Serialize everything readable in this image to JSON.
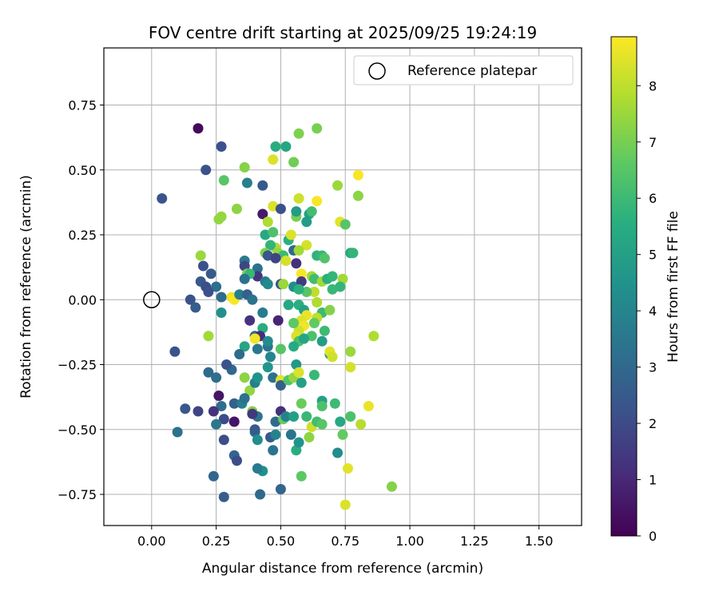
{
  "chart_data": {
    "type": "scatter",
    "title": "FOV centre drift starting at 2025/09/25 19:24:19",
    "xlabel": "Angular distance from reference (arcmin)",
    "ylabel": "Rotation from reference (arcmin)",
    "xlim": [
      -0.185,
      1.665
    ],
    "ylim": [
      -0.87,
      0.97
    ],
    "xticks": [
      0.0,
      0.25,
      0.5,
      0.75,
      1.0,
      1.25,
      1.5
    ],
    "xtick_labels": [
      "0.00",
      "0.25",
      "0.50",
      "0.75",
      "1.00",
      "1.25",
      "1.50"
    ],
    "yticks": [
      -0.75,
      -0.5,
      -0.25,
      0.0,
      0.25,
      0.5,
      0.75
    ],
    "ytick_labels": [
      "−0.75",
      "−0.50",
      "−0.25",
      "0.00",
      "0.25",
      "0.50",
      "0.75"
    ],
    "grid": true,
    "legend": {
      "position": "top-right",
      "entries": [
        {
          "label": "Reference platepar",
          "marker": "open-circle"
        }
      ]
    },
    "reference_point": {
      "x": 0.0,
      "y": 0.0
    },
    "colorbar": {
      "label": "Hours from first FF file",
      "colormap": "viridis",
      "range": [
        0,
        8.87
      ],
      "ticks": [
        0,
        1,
        2,
        3,
        4,
        5,
        6,
        7,
        8
      ],
      "tick_labels": [
        "0",
        "1",
        "2",
        "3",
        "4",
        "5",
        "6",
        "7",
        "8"
      ]
    },
    "points": [
      {
        "x": 0.18,
        "y": 0.66,
        "c": 0.2
      },
      {
        "x": 0.27,
        "y": 0.59,
        "c": 2.2
      },
      {
        "x": 0.21,
        "y": 0.5,
        "c": 2.2
      },
      {
        "x": 0.04,
        "y": 0.39,
        "c": 2.3
      },
      {
        "x": 0.43,
        "y": 0.44,
        "c": 2.5
      },
      {
        "x": 0.37,
        "y": 0.45,
        "c": 3.8
      },
      {
        "x": 0.28,
        "y": 0.46,
        "c": 6.5
      },
      {
        "x": 0.36,
        "y": 0.51,
        "c": 7.2
      },
      {
        "x": 0.48,
        "y": 0.59,
        "c": 5.5
      },
      {
        "x": 0.52,
        "y": 0.59,
        "c": 5.2
      },
      {
        "x": 0.47,
        "y": 0.54,
        "c": 8.4
      },
      {
        "x": 0.55,
        "y": 0.53,
        "c": 6.9
      },
      {
        "x": 0.57,
        "y": 0.64,
        "c": 7.1
      },
      {
        "x": 0.64,
        "y": 0.66,
        "c": 7.0
      },
      {
        "x": 0.72,
        "y": 0.44,
        "c": 7.5
      },
      {
        "x": 0.8,
        "y": 0.48,
        "c": 8.8
      },
      {
        "x": 0.8,
        "y": 0.4,
        "c": 7.3
      },
      {
        "x": 0.57,
        "y": 0.39,
        "c": 8.2
      },
      {
        "x": 0.64,
        "y": 0.38,
        "c": 8.8
      },
      {
        "x": 0.73,
        "y": 0.3,
        "c": 8.5
      },
      {
        "x": 0.75,
        "y": 0.29,
        "c": 6.5
      },
      {
        "x": 0.33,
        "y": 0.35,
        "c": 7.3
      },
      {
        "x": 0.26,
        "y": 0.31,
        "c": 7.4
      },
      {
        "x": 0.27,
        "y": 0.32,
        "c": 7.4
      },
      {
        "x": 0.43,
        "y": 0.33,
        "c": 0.6
      },
      {
        "x": 0.47,
        "y": 0.36,
        "c": 8.4
      },
      {
        "x": 0.5,
        "y": 0.35,
        "c": 2.2
      },
      {
        "x": 0.45,
        "y": 0.3,
        "c": 7.8
      },
      {
        "x": 0.44,
        "y": 0.25,
        "c": 5.3
      },
      {
        "x": 0.47,
        "y": 0.26,
        "c": 6.3
      },
      {
        "x": 0.53,
        "y": 0.23,
        "c": 5.6
      },
      {
        "x": 0.54,
        "y": 0.25,
        "c": 8.4
      },
      {
        "x": 0.56,
        "y": 0.32,
        "c": 7.0
      },
      {
        "x": 0.56,
        "y": 0.34,
        "c": 4.8
      },
      {
        "x": 0.6,
        "y": 0.3,
        "c": 4.8
      },
      {
        "x": 0.61,
        "y": 0.33,
        "c": 4.9
      },
      {
        "x": 0.62,
        "y": 0.34,
        "c": 6.1
      },
      {
        "x": 0.6,
        "y": 0.21,
        "c": 8.3
      },
      {
        "x": 0.55,
        "y": 0.19,
        "c": 3.0
      },
      {
        "x": 0.48,
        "y": 0.2,
        "c": 7.8
      },
      {
        "x": 0.46,
        "y": 0.21,
        "c": 5.8
      },
      {
        "x": 0.44,
        "y": 0.18,
        "c": 7.1
      },
      {
        "x": 0.45,
        "y": 0.17,
        "c": 2.4
      },
      {
        "x": 0.49,
        "y": 0.18,
        "c": 7.4
      },
      {
        "x": 0.51,
        "y": 0.17,
        "c": 6.0
      },
      {
        "x": 0.56,
        "y": 0.14,
        "c": 1.2
      },
      {
        "x": 0.52,
        "y": 0.15,
        "c": 8.3
      },
      {
        "x": 0.48,
        "y": 0.16,
        "c": 1.8
      },
      {
        "x": 0.57,
        "y": 0.19,
        "c": 7.6
      },
      {
        "x": 0.64,
        "y": 0.17,
        "c": 5.7
      },
      {
        "x": 0.66,
        "y": 0.17,
        "c": 5.9
      },
      {
        "x": 0.67,
        "y": 0.16,
        "c": 6.4
      },
      {
        "x": 0.77,
        "y": 0.18,
        "c": 5.3
      },
      {
        "x": 0.78,
        "y": 0.18,
        "c": 5.8
      },
      {
        "x": 0.19,
        "y": 0.17,
        "c": 7.5
      },
      {
        "x": 0.2,
        "y": 0.13,
        "c": 2.2
      },
      {
        "x": 0.23,
        "y": 0.1,
        "c": 2.5
      },
      {
        "x": 0.36,
        "y": 0.15,
        "c": 3.6
      },
      {
        "x": 0.36,
        "y": 0.13,
        "c": 1.9
      },
      {
        "x": 0.4,
        "y": 0.1,
        "c": 2.9
      },
      {
        "x": 0.41,
        "y": 0.12,
        "c": 3.3
      },
      {
        "x": 0.41,
        "y": 0.09,
        "c": 1.4
      },
      {
        "x": 0.37,
        "y": 0.1,
        "c": 7.2
      },
      {
        "x": 0.38,
        "y": 0.1,
        "c": 5.9
      },
      {
        "x": 0.36,
        "y": 0.08,
        "c": 3.3
      },
      {
        "x": 0.44,
        "y": 0.07,
        "c": 3.6
      },
      {
        "x": 0.45,
        "y": 0.06,
        "c": 4.2
      },
      {
        "x": 0.5,
        "y": 0.06,
        "c": 2.4
      },
      {
        "x": 0.51,
        "y": 0.06,
        "c": 7.5
      },
      {
        "x": 0.55,
        "y": 0.05,
        "c": 4.3
      },
      {
        "x": 0.58,
        "y": 0.1,
        "c": 8.8
      },
      {
        "x": 0.58,
        "y": 0.07,
        "c": 1.5
      },
      {
        "x": 0.62,
        "y": 0.09,
        "c": 7.6
      },
      {
        "x": 0.63,
        "y": 0.08,
        "c": 6.1
      },
      {
        "x": 0.66,
        "y": 0.07,
        "c": 7.6
      },
      {
        "x": 0.68,
        "y": 0.08,
        "c": 5.6
      },
      {
        "x": 0.7,
        "y": 0.09,
        "c": 5.8
      },
      {
        "x": 0.74,
        "y": 0.08,
        "c": 7.6
      },
      {
        "x": 0.73,
        "y": 0.05,
        "c": 5.8
      },
      {
        "x": 0.7,
        "y": 0.04,
        "c": 5.9
      },
      {
        "x": 0.63,
        "y": 0.03,
        "c": 8.0
      },
      {
        "x": 0.6,
        "y": 0.03,
        "c": 6.5
      },
      {
        "x": 0.57,
        "y": 0.04,
        "c": 5.6
      },
      {
        "x": 0.19,
        "y": 0.07,
        "c": 2.5
      },
      {
        "x": 0.21,
        "y": 0.05,
        "c": 2.1
      },
      {
        "x": 0.25,
        "y": 0.05,
        "c": 3.2
      },
      {
        "x": 0.22,
        "y": 0.03,
        "c": 2.2
      },
      {
        "x": 0.15,
        "y": 0.0,
        "c": 2.3
      },
      {
        "x": 0.17,
        "y": -0.03,
        "c": 2.6
      },
      {
        "x": 0.27,
        "y": 0.01,
        "c": 3.1
      },
      {
        "x": 0.31,
        "y": 0.01,
        "c": 8.6
      },
      {
        "x": 0.32,
        "y": 0.0,
        "c": 8.8
      },
      {
        "x": 0.34,
        "y": 0.02,
        "c": 3.8
      },
      {
        "x": 0.37,
        "y": 0.02,
        "c": 2.7
      },
      {
        "x": 0.39,
        "y": 0.0,
        "c": 3.4
      },
      {
        "x": 0.27,
        "y": -0.05,
        "c": 4.4
      },
      {
        "x": 0.38,
        "y": -0.08,
        "c": 1.3
      },
      {
        "x": 0.43,
        "y": -0.05,
        "c": 3.7
      },
      {
        "x": 0.49,
        "y": -0.08,
        "c": 0.9
      },
      {
        "x": 0.53,
        "y": -0.02,
        "c": 5.3
      },
      {
        "x": 0.57,
        "y": -0.02,
        "c": 5.6
      },
      {
        "x": 0.59,
        "y": -0.04,
        "c": 5.0
      },
      {
        "x": 0.6,
        "y": -0.06,
        "c": 8.6
      },
      {
        "x": 0.58,
        "y": -0.08,
        "c": 8.4
      },
      {
        "x": 0.59,
        "y": -0.1,
        "c": 8.7
      },
      {
        "x": 0.57,
        "y": -0.12,
        "c": 8.2
      },
      {
        "x": 0.55,
        "y": -0.09,
        "c": 6.6
      },
      {
        "x": 0.64,
        "y": -0.01,
        "c": 7.8
      },
      {
        "x": 0.66,
        "y": -0.05,
        "c": 6.0
      },
      {
        "x": 0.69,
        "y": -0.04,
        "c": 7.2
      },
      {
        "x": 0.64,
        "y": -0.07,
        "c": 8.0
      },
      {
        "x": 0.63,
        "y": -0.09,
        "c": 6.7
      },
      {
        "x": 0.62,
        "y": -0.14,
        "c": 6.3
      },
      {
        "x": 0.67,
        "y": -0.12,
        "c": 6.0
      },
      {
        "x": 0.66,
        "y": -0.16,
        "c": 4.9
      },
      {
        "x": 0.56,
        "y": -0.14,
        "c": 8.4
      },
      {
        "x": 0.57,
        "y": -0.16,
        "c": 6.2
      },
      {
        "x": 0.59,
        "y": -0.15,
        "c": 5.2
      },
      {
        "x": 0.55,
        "y": -0.18,
        "c": 5.4
      },
      {
        "x": 0.43,
        "y": -0.11,
        "c": 5.5
      },
      {
        "x": 0.4,
        "y": -0.14,
        "c": 2.8
      },
      {
        "x": 0.42,
        "y": -0.14,
        "c": 1.1
      },
      {
        "x": 0.41,
        "y": -0.19,
        "c": 3.5
      },
      {
        "x": 0.45,
        "y": -0.18,
        "c": 3.4
      },
      {
        "x": 0.46,
        "y": -0.22,
        "c": 4.0
      },
      {
        "x": 0.5,
        "y": -0.19,
        "c": 6.5
      },
      {
        "x": 0.45,
        "y": -0.16,
        "c": 4.3
      },
      {
        "x": 0.4,
        "y": -0.15,
        "c": 8.7
      },
      {
        "x": 0.36,
        "y": -0.18,
        "c": 5.2
      },
      {
        "x": 0.34,
        "y": -0.21,
        "c": 3.1
      },
      {
        "x": 0.31,
        "y": -0.27,
        "c": 3.0
      },
      {
        "x": 0.29,
        "y": -0.25,
        "c": 2.3
      },
      {
        "x": 0.22,
        "y": -0.14,
        "c": 7.6
      },
      {
        "x": 0.09,
        "y": -0.2,
        "c": 2.3
      },
      {
        "x": 0.22,
        "y": -0.28,
        "c": 3.1
      },
      {
        "x": 0.25,
        "y": -0.3,
        "c": 3.2
      },
      {
        "x": 0.36,
        "y": -0.3,
        "c": 7.3
      },
      {
        "x": 0.38,
        "y": -0.35,
        "c": 7.4
      },
      {
        "x": 0.4,
        "y": -0.32,
        "c": 3.8
      },
      {
        "x": 0.41,
        "y": -0.3,
        "c": 4.5
      },
      {
        "x": 0.45,
        "y": -0.26,
        "c": 4.6
      },
      {
        "x": 0.47,
        "y": -0.3,
        "c": 3.3
      },
      {
        "x": 0.5,
        "y": -0.31,
        "c": 8.5
      },
      {
        "x": 0.5,
        "y": -0.33,
        "c": 2.7
      },
      {
        "x": 0.53,
        "y": -0.31,
        "c": 6.4
      },
      {
        "x": 0.55,
        "y": -0.3,
        "c": 7.4
      },
      {
        "x": 0.56,
        "y": -0.25,
        "c": 4.7
      },
      {
        "x": 0.57,
        "y": -0.28,
        "c": 8.4
      },
      {
        "x": 0.58,
        "y": -0.32,
        "c": 5.0
      },
      {
        "x": 0.63,
        "y": -0.29,
        "c": 5.9
      },
      {
        "x": 0.69,
        "y": -0.21,
        "c": 4.6
      },
      {
        "x": 0.69,
        "y": -0.2,
        "c": 8.5
      },
      {
        "x": 0.7,
        "y": -0.22,
        "c": 8.2
      },
      {
        "x": 0.77,
        "y": -0.2,
        "c": 7.5
      },
      {
        "x": 0.77,
        "y": -0.26,
        "c": 8.3
      },
      {
        "x": 0.86,
        "y": -0.14,
        "c": 7.8
      },
      {
        "x": 0.26,
        "y": -0.37,
        "c": 0.5
      },
      {
        "x": 0.27,
        "y": -0.41,
        "c": 3.2
      },
      {
        "x": 0.32,
        "y": -0.4,
        "c": 2.7
      },
      {
        "x": 0.35,
        "y": -0.4,
        "c": 3.8
      },
      {
        "x": 0.36,
        "y": -0.38,
        "c": 3.3
      },
      {
        "x": 0.39,
        "y": -0.43,
        "c": 7.2
      },
      {
        "x": 0.41,
        "y": -0.45,
        "c": 3.4
      },
      {
        "x": 0.39,
        "y": -0.44,
        "c": 1.4
      },
      {
        "x": 0.32,
        "y": -0.47,
        "c": 0.5
      },
      {
        "x": 0.28,
        "y": -0.46,
        "c": 2.0
      },
      {
        "x": 0.25,
        "y": -0.48,
        "c": 3.5
      },
      {
        "x": 0.13,
        "y": -0.42,
        "c": 2.4
      },
      {
        "x": 0.18,
        "y": -0.43,
        "c": 1.8
      },
      {
        "x": 0.24,
        "y": -0.43,
        "c": 1.3
      },
      {
        "x": 0.1,
        "y": -0.51,
        "c": 3.3
      },
      {
        "x": 0.28,
        "y": -0.54,
        "c": 2.1
      },
      {
        "x": 0.32,
        "y": -0.6,
        "c": 2.9
      },
      {
        "x": 0.4,
        "y": -0.51,
        "c": 3.1
      },
      {
        "x": 0.4,
        "y": -0.5,
        "c": 2.5
      },
      {
        "x": 0.41,
        "y": -0.54,
        "c": 4.3
      },
      {
        "x": 0.46,
        "y": -0.53,
        "c": 2.5
      },
      {
        "x": 0.48,
        "y": -0.52,
        "c": 3.9
      },
      {
        "x": 0.47,
        "y": -0.58,
        "c": 3.4
      },
      {
        "x": 0.48,
        "y": -0.47,
        "c": 3.1
      },
      {
        "x": 0.5,
        "y": -0.43,
        "c": 1.2
      },
      {
        "x": 0.51,
        "y": -0.46,
        "c": 6.8
      },
      {
        "x": 0.52,
        "y": -0.45,
        "c": 3.9
      },
      {
        "x": 0.54,
        "y": -0.52,
        "c": 3.4
      },
      {
        "x": 0.55,
        "y": -0.45,
        "c": 5.0
      },
      {
        "x": 0.56,
        "y": -0.58,
        "c": 5.5
      },
      {
        "x": 0.57,
        "y": -0.55,
        "c": 4.5
      },
      {
        "x": 0.58,
        "y": -0.4,
        "c": 6.8
      },
      {
        "x": 0.6,
        "y": -0.45,
        "c": 5.9
      },
      {
        "x": 0.61,
        "y": -0.53,
        "c": 7.3
      },
      {
        "x": 0.62,
        "y": -0.49,
        "c": 8.2
      },
      {
        "x": 0.64,
        "y": -0.47,
        "c": 6.1
      },
      {
        "x": 0.66,
        "y": -0.39,
        "c": 5.0
      },
      {
        "x": 0.66,
        "y": -0.41,
        "c": 6.3
      },
      {
        "x": 0.66,
        "y": -0.48,
        "c": 6.5
      },
      {
        "x": 0.71,
        "y": -0.4,
        "c": 6.0
      },
      {
        "x": 0.73,
        "y": -0.47,
        "c": 5.3
      },
      {
        "x": 0.74,
        "y": -0.52,
        "c": 6.7
      },
      {
        "x": 0.77,
        "y": -0.45,
        "c": 6.3
      },
      {
        "x": 0.81,
        "y": -0.48,
        "c": 7.9
      },
      {
        "x": 0.84,
        "y": -0.41,
        "c": 8.6
      },
      {
        "x": 0.72,
        "y": -0.59,
        "c": 4.3
      },
      {
        "x": 0.76,
        "y": -0.65,
        "c": 8.5
      },
      {
        "x": 0.58,
        "y": -0.68,
        "c": 6.6
      },
      {
        "x": 0.43,
        "y": -0.66,
        "c": 4.4
      },
      {
        "x": 0.41,
        "y": -0.65,
        "c": 3.6
      },
      {
        "x": 0.33,
        "y": -0.62,
        "c": 2.1
      },
      {
        "x": 0.24,
        "y": -0.68,
        "c": 2.9
      },
      {
        "x": 0.28,
        "y": -0.76,
        "c": 2.6
      },
      {
        "x": 0.42,
        "y": -0.75,
        "c": 3.0
      },
      {
        "x": 0.5,
        "y": -0.73,
        "c": 2.9
      },
      {
        "x": 0.93,
        "y": -0.72,
        "c": 7.2
      },
      {
        "x": 0.75,
        "y": -0.79,
        "c": 8.4
      }
    ]
  }
}
